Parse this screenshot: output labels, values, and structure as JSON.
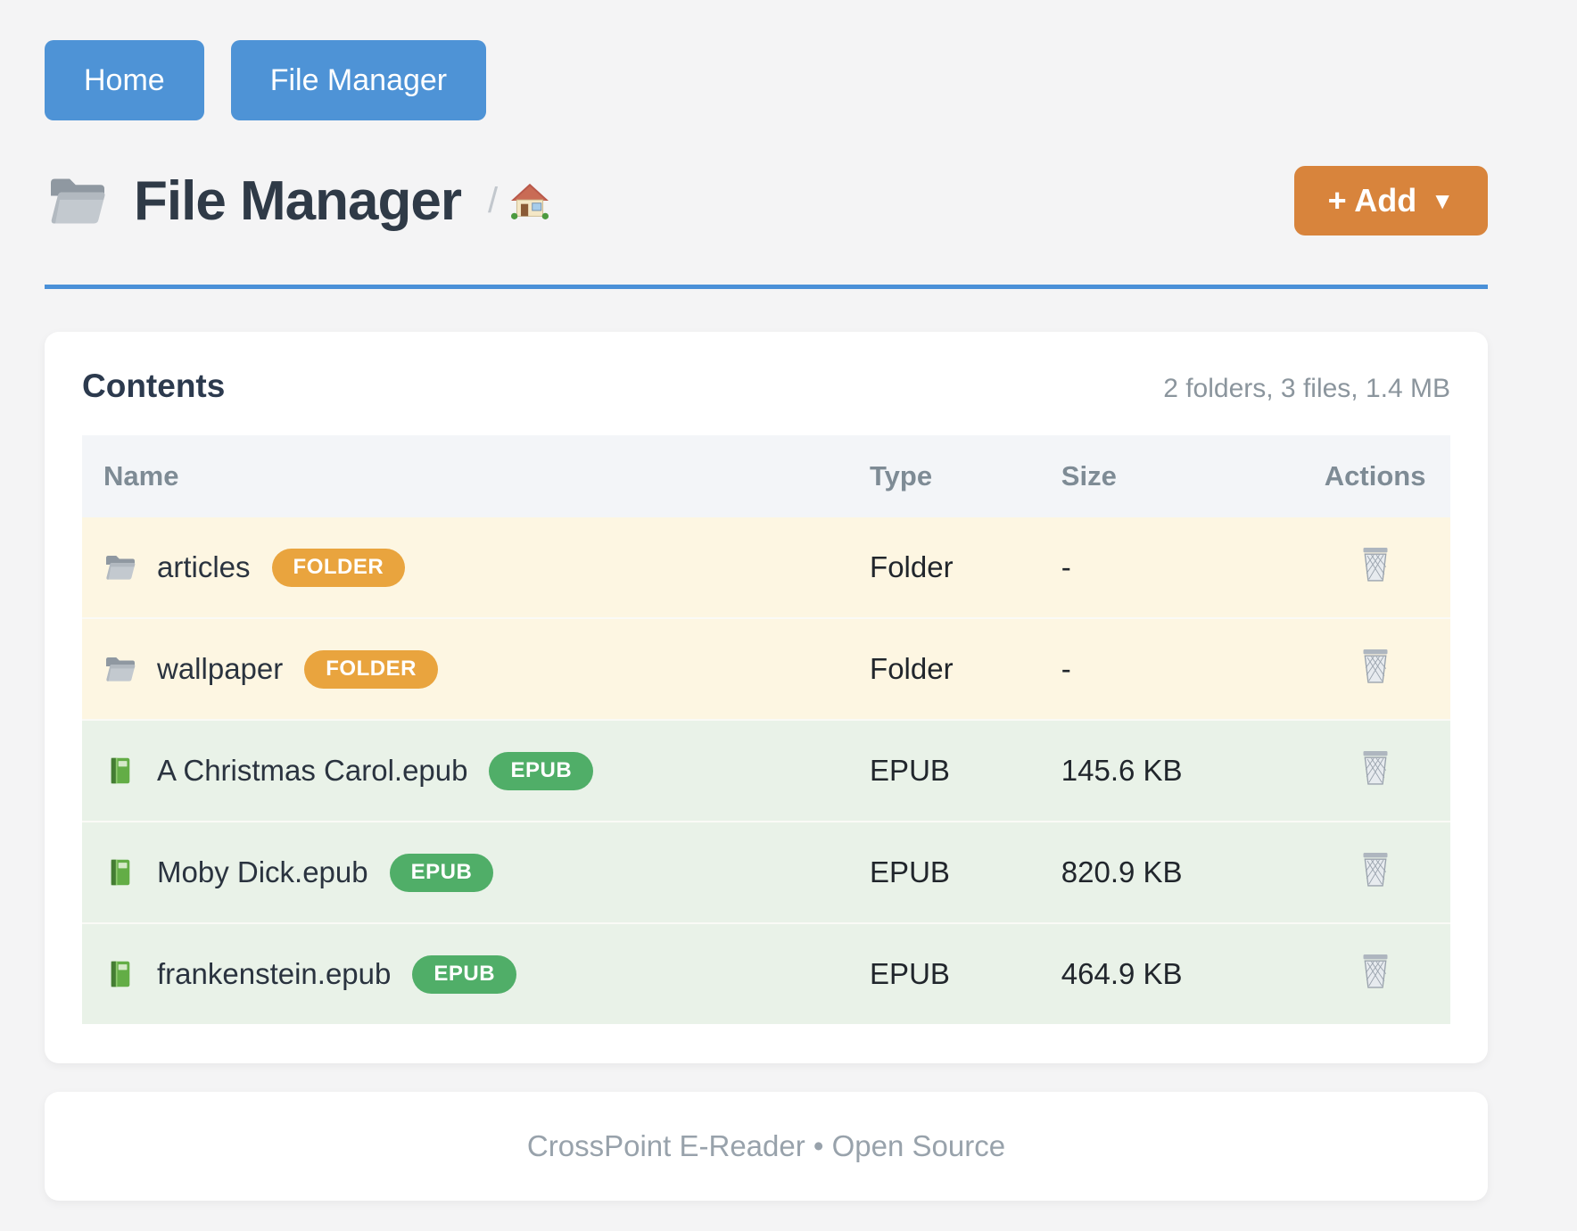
{
  "nav": {
    "buttons": [
      {
        "label": "Home"
      },
      {
        "label": "File Manager"
      }
    ]
  },
  "header": {
    "title": "File Manager",
    "breadcrumb_separator": "/",
    "add_button_label": "+ Add",
    "add_button_caret": "▼"
  },
  "contents": {
    "heading": "Contents",
    "summary": "2 folders, 3 files, 1.4 MB",
    "columns": [
      "Name",
      "Type",
      "Size",
      "Actions"
    ],
    "rows": [
      {
        "name": "articles",
        "badge": "FOLDER",
        "kind": "folder",
        "type": "Folder",
        "size": "-"
      },
      {
        "name": "wallpaper",
        "badge": "FOLDER",
        "kind": "folder",
        "type": "Folder",
        "size": "-"
      },
      {
        "name": "A Christmas Carol.epub",
        "badge": "EPUB",
        "kind": "epub",
        "type": "EPUB",
        "size": "145.6 KB"
      },
      {
        "name": "Moby Dick.epub",
        "badge": "EPUB",
        "kind": "epub",
        "type": "EPUB",
        "size": "820.9 KB"
      },
      {
        "name": "frankenstein.epub",
        "badge": "EPUB",
        "kind": "epub",
        "type": "EPUB",
        "size": "464.9 KB"
      }
    ]
  },
  "footer": {
    "text": "CrossPoint E-Reader • Open Source"
  },
  "colors": {
    "primary_blue": "#4e93d6",
    "underline_blue": "#4a90d8",
    "accent_orange": "#d8843c",
    "folder_badge": "#e9a43e",
    "epub_badge": "#50ae68",
    "folder_row_bg": "#fdf6e2",
    "epub_row_bg": "#e9f2e8"
  }
}
